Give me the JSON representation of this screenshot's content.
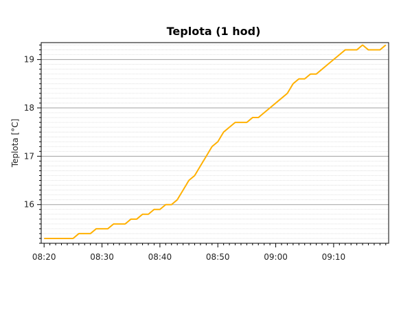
{
  "chart_data": {
    "type": "line",
    "title": "Teplota (1 hod)",
    "xlabel": "",
    "ylabel": "Teplota [°C]",
    "x_tick_labels": [
      "08:20",
      "08:30",
      "08:40",
      "08:50",
      "09:00",
      "09:10"
    ],
    "y_tick_labels": [
      "16",
      "17",
      "18",
      "19"
    ],
    "y_ticks": [
      16,
      17,
      18,
      19
    ],
    "ylim": [
      15.2,
      19.35
    ],
    "xlim": [
      "08:20",
      "09:19"
    ],
    "grid": "horizontal",
    "legend": "none",
    "series": [
      {
        "color": "#FFB000",
        "points": [
          [
            "08:20",
            15.3
          ],
          [
            "08:21",
            15.3
          ],
          [
            "08:22",
            15.3
          ],
          [
            "08:23",
            15.3
          ],
          [
            "08:24",
            15.3
          ],
          [
            "08:25",
            15.3
          ],
          [
            "08:26",
            15.4
          ],
          [
            "08:27",
            15.4
          ],
          [
            "08:28",
            15.4
          ],
          [
            "08:29",
            15.5
          ],
          [
            "08:30",
            15.5
          ],
          [
            "08:31",
            15.5
          ],
          [
            "08:32",
            15.6
          ],
          [
            "08:33",
            15.6
          ],
          [
            "08:34",
            15.6
          ],
          [
            "08:35",
            15.7
          ],
          [
            "08:36",
            15.7
          ],
          [
            "08:37",
            15.8
          ],
          [
            "08:38",
            15.8
          ],
          [
            "08:39",
            15.9
          ],
          [
            "08:40",
            15.9
          ],
          [
            "08:41",
            16.0
          ],
          [
            "08:42",
            16.0
          ],
          [
            "08:43",
            16.1
          ],
          [
            "08:44",
            16.3
          ],
          [
            "08:45",
            16.5
          ],
          [
            "08:46",
            16.6
          ],
          [
            "08:47",
            16.8
          ],
          [
            "08:48",
            17.0
          ],
          [
            "08:49",
            17.2
          ],
          [
            "08:50",
            17.3
          ],
          [
            "08:51",
            17.5
          ],
          [
            "08:52",
            17.6
          ],
          [
            "08:53",
            17.7
          ],
          [
            "08:54",
            17.7
          ],
          [
            "08:55",
            17.7
          ],
          [
            "08:56",
            17.8
          ],
          [
            "08:57",
            17.8
          ],
          [
            "08:58",
            17.9
          ],
          [
            "08:59",
            18.0
          ],
          [
            "09:00",
            18.1
          ],
          [
            "09:01",
            18.2
          ],
          [
            "09:02",
            18.3
          ],
          [
            "09:03",
            18.5
          ],
          [
            "09:04",
            18.6
          ],
          [
            "09:05",
            18.6
          ],
          [
            "09:06",
            18.7
          ],
          [
            "09:07",
            18.7
          ],
          [
            "09:08",
            18.8
          ],
          [
            "09:09",
            18.9
          ],
          [
            "09:10",
            19.0
          ],
          [
            "09:11",
            19.1
          ],
          [
            "09:12",
            19.2
          ],
          [
            "09:13",
            19.2
          ],
          [
            "09:14",
            19.2
          ],
          [
            "09:15",
            19.3
          ],
          [
            "09:16",
            19.2
          ],
          [
            "09:17",
            19.2
          ],
          [
            "09:18",
            19.2
          ],
          [
            "09:19",
            19.3
          ]
        ]
      }
    ]
  }
}
